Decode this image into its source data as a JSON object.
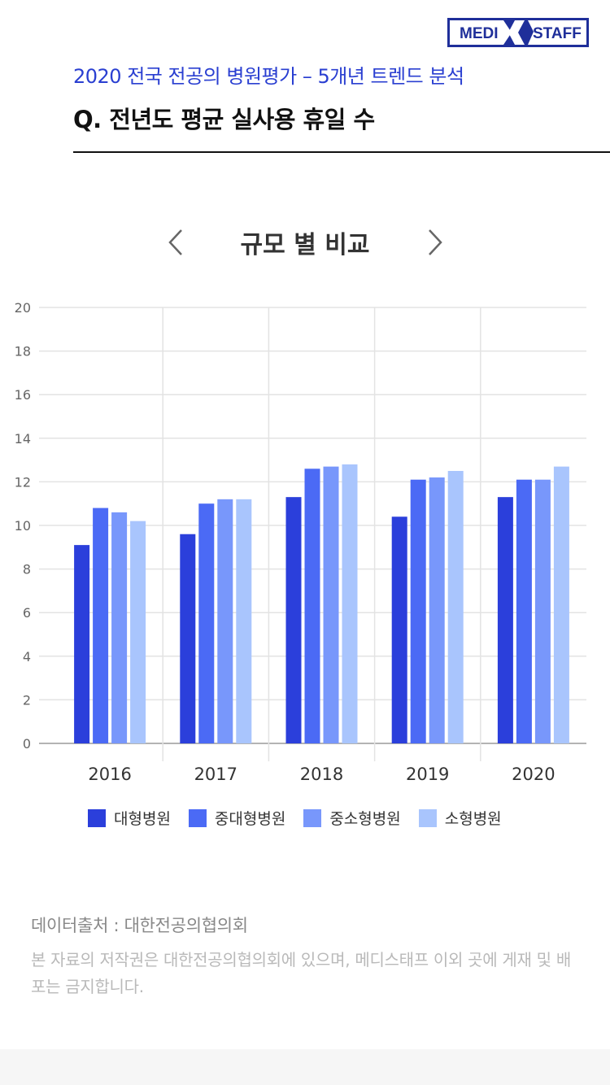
{
  "header": {
    "logo_left": "MEDI",
    "logo_right": "STAFF",
    "subtitle": "2020 전국 전공의 병원평가 – 5개년 트렌드 분석",
    "question": "Q. 전년도 평균 실사용 휴일 수"
  },
  "nav": {
    "title": "규모 별 비교",
    "prev_icon": "chevron-left-icon",
    "next_icon": "chevron-right-icon"
  },
  "chart_data": {
    "type": "bar",
    "categories": [
      "2016",
      "2017",
      "2018",
      "2019",
      "2020"
    ],
    "ylim": [
      0,
      20
    ],
    "yticks": [
      0,
      2,
      4,
      6,
      8,
      10,
      12,
      14,
      16,
      18,
      20
    ],
    "grid": true,
    "legend_position": "bottom",
    "series": [
      {
        "name": "대형병원",
        "color": "#2b3fdb",
        "values": [
          9.1,
          9.6,
          11.3,
          10.4,
          11.3
        ]
      },
      {
        "name": "중대형병원",
        "color": "#4b6af5",
        "values": [
          10.8,
          11.0,
          12.6,
          12.1,
          12.1
        ]
      },
      {
        "name": "중소형병원",
        "color": "#7897fb",
        "values": [
          10.6,
          11.2,
          12.7,
          12.2,
          12.1
        ]
      },
      {
        "name": "소형병원",
        "color": "#a9c5fd",
        "values": [
          10.2,
          11.2,
          12.8,
          12.5,
          12.7
        ]
      }
    ]
  },
  "footer": {
    "source": "데이터출처 : 대한전공의협의회",
    "notice": "본 자료의 저작권은 대한전공의협의회에 있으며, 메디스태프 이외 곳에 게재 및 배포는 금지합니다."
  }
}
